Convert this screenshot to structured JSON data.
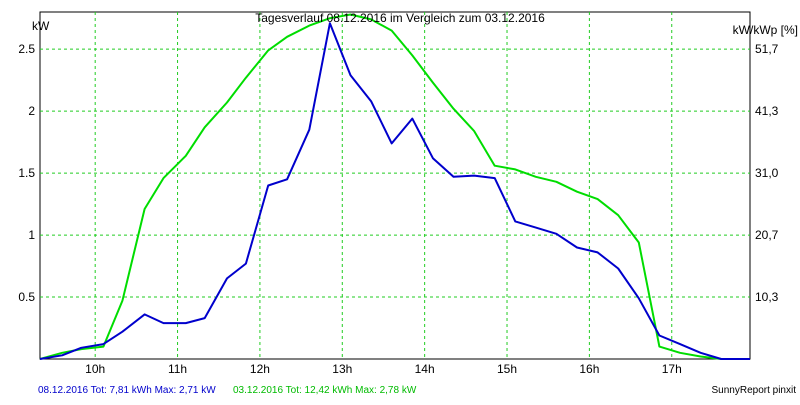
{
  "chart_data": {
    "type": "line",
    "title": "Tagesverlauf 08.12.2016 im Vergleich zum 03.12.2016",
    "ylabel_left": "kW",
    "ylabel_right": "kW/kWp [%]",
    "xlim": [
      9.33,
      17.95
    ],
    "ylim": [
      0,
      2.8
    ],
    "x_ticks": [
      {
        "value": 10,
        "label": "10h"
      },
      {
        "value": 11,
        "label": "11h"
      },
      {
        "value": 12,
        "label": "12h"
      },
      {
        "value": 13,
        "label": "13h"
      },
      {
        "value": 14,
        "label": "14h"
      },
      {
        "value": 15,
        "label": "15h"
      },
      {
        "value": 16,
        "label": "16h"
      },
      {
        "value": 17,
        "label": "17h"
      }
    ],
    "y_ticks_left": [
      {
        "value": 0.5,
        "label": "0.5"
      },
      {
        "value": 1,
        "label": "1"
      },
      {
        "value": 1.5,
        "label": "1.5"
      },
      {
        "value": 2,
        "label": "2"
      },
      {
        "value": 2.5,
        "label": "2.5"
      }
    ],
    "y_ticks_right": [
      {
        "value": 0.5,
        "label": "10,3"
      },
      {
        "value": 1,
        "label": "20,7"
      },
      {
        "value": 1.5,
        "label": "31,0"
      },
      {
        "value": 2,
        "label": "41,3"
      },
      {
        "value": 2.5,
        "label": "51,7"
      }
    ],
    "grid": true,
    "series": [
      {
        "name": "08.12.2016",
        "color": "#0000cc",
        "points": [
          [
            9.33,
            0.0
          ],
          [
            9.6,
            0.03
          ],
          [
            9.83,
            0.09
          ],
          [
            10.1,
            0.12
          ],
          [
            10.33,
            0.22
          ],
          [
            10.6,
            0.36
          ],
          [
            10.83,
            0.29
          ],
          [
            11.1,
            0.29
          ],
          [
            11.33,
            0.33
          ],
          [
            11.6,
            0.65
          ],
          [
            11.83,
            0.77
          ],
          [
            12.1,
            1.4
          ],
          [
            12.33,
            1.45
          ],
          [
            12.6,
            1.85
          ],
          [
            12.85,
            2.71
          ],
          [
            13.1,
            2.29
          ],
          [
            13.35,
            2.08
          ],
          [
            13.6,
            1.74
          ],
          [
            13.85,
            1.94
          ],
          [
            14.1,
            1.62
          ],
          [
            14.35,
            1.47
          ],
          [
            14.6,
            1.48
          ],
          [
            14.85,
            1.46
          ],
          [
            15.1,
            1.11
          ],
          [
            15.35,
            1.06
          ],
          [
            15.6,
            1.01
          ],
          [
            15.85,
            0.9
          ],
          [
            16.1,
            0.86
          ],
          [
            16.35,
            0.73
          ],
          [
            16.6,
            0.49
          ],
          [
            16.85,
            0.19
          ],
          [
            17.1,
            0.12
          ],
          [
            17.35,
            0.05
          ],
          [
            17.6,
            0.0
          ],
          [
            17.95,
            0.0
          ]
        ]
      },
      {
        "name": "03.12.2016",
        "color": "#00dd00",
        "points": [
          [
            9.33,
            0.0
          ],
          [
            9.6,
            0.05
          ],
          [
            9.83,
            0.08
          ],
          [
            10.1,
            0.1
          ],
          [
            10.33,
            0.47
          ],
          [
            10.6,
            1.21
          ],
          [
            10.83,
            1.46
          ],
          [
            11.1,
            1.64
          ],
          [
            11.33,
            1.87
          ],
          [
            11.6,
            2.07
          ],
          [
            11.83,
            2.27
          ],
          [
            12.1,
            2.49
          ],
          [
            12.33,
            2.6
          ],
          [
            12.6,
            2.69
          ],
          [
            12.85,
            2.75
          ],
          [
            13.1,
            2.78
          ],
          [
            13.35,
            2.74
          ],
          [
            13.6,
            2.65
          ],
          [
            13.85,
            2.45
          ],
          [
            14.1,
            2.23
          ],
          [
            14.35,
            2.02
          ],
          [
            14.6,
            1.84
          ],
          [
            14.85,
            1.56
          ],
          [
            15.1,
            1.53
          ],
          [
            15.35,
            1.47
          ],
          [
            15.6,
            1.43
          ],
          [
            15.85,
            1.35
          ],
          [
            16.1,
            1.29
          ],
          [
            16.35,
            1.16
          ],
          [
            16.6,
            0.94
          ],
          [
            16.85,
            0.1
          ],
          [
            17.1,
            0.05
          ],
          [
            17.35,
            0.02
          ],
          [
            17.6,
            0.0
          ],
          [
            17.95,
            0.0
          ]
        ]
      }
    ],
    "footer": {
      "series1_text": "08.12.2016 Tot: 7,81 kWh Max: 2,71 kW",
      "series2_text": "03.12.2016 Tot: 12,42 kWh Max: 2,78 kW",
      "credit": "SunnyReport pinxit"
    }
  }
}
